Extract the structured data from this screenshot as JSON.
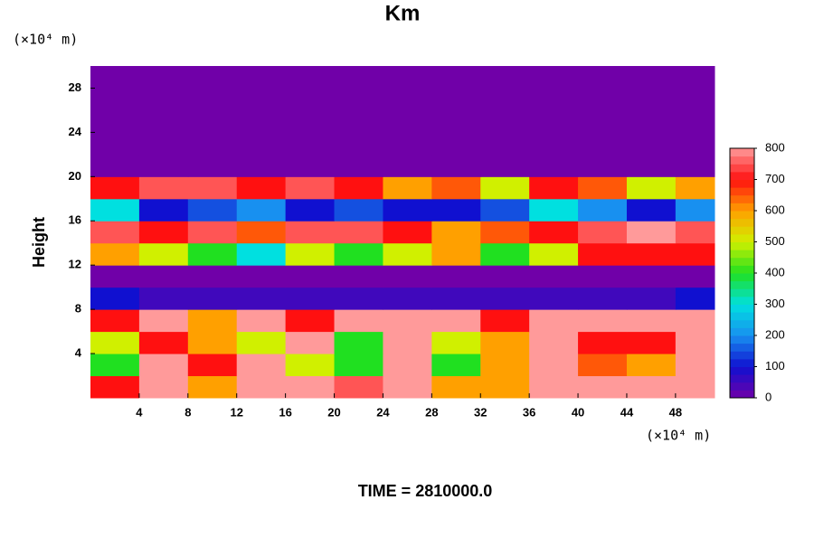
{
  "chart_data": {
    "type": "heatmap",
    "title": "Km",
    "ylabel": "Height",
    "x_unit": "(×10⁴ m)",
    "y_unit": "(×10⁴ m)",
    "footer": "TIME = 2810000.0",
    "xlim": [
      0,
      51.2
    ],
    "ylim": [
      0,
      30
    ],
    "xticks": [
      4,
      8,
      12,
      16,
      20,
      24,
      28,
      32,
      36,
      40,
      44,
      48
    ],
    "yticks": [
      4,
      8,
      12,
      16,
      20,
      24,
      28
    ],
    "x_edges": [
      0,
      4,
      8,
      12,
      16,
      20,
      24,
      28,
      32,
      36,
      40,
      44,
      48,
      51.2
    ],
    "y_edges": [
      0,
      2,
      4,
      6,
      8,
      10,
      12,
      14,
      16,
      18,
      20,
      22,
      24,
      26,
      28,
      30
    ],
    "z": [
      [
        700,
        800,
        600,
        800,
        800,
        750,
        800,
        600,
        600,
        800,
        800,
        800,
        800
      ],
      [
        400,
        800,
        700,
        800,
        500,
        400,
        800,
        400,
        600,
        800,
        650,
        600,
        800
      ],
      [
        500,
        700,
        600,
        500,
        800,
        400,
        800,
        500,
        600,
        800,
        700,
        700,
        800
      ],
      [
        700,
        800,
        600,
        800,
        700,
        800,
        800,
        800,
        700,
        800,
        800,
        800,
        800
      ],
      [
        100,
        50,
        50,
        50,
        50,
        50,
        50,
        50,
        50,
        50,
        50,
        50,
        100
      ],
      [
        0,
        0,
        0,
        0,
        0,
        0,
        0,
        0,
        0,
        0,
        0,
        0,
        0
      ],
      [
        600,
        500,
        400,
        300,
        500,
        400,
        500,
        600,
        400,
        500,
        700,
        700,
        700
      ],
      [
        750,
        700,
        750,
        650,
        750,
        750,
        700,
        600,
        650,
        700,
        750,
        800,
        750
      ],
      [
        300,
        100,
        150,
        200,
        100,
        150,
        100,
        100,
        150,
        300,
        200,
        100,
        200
      ],
      [
        700,
        750,
        750,
        700,
        750,
        700,
        600,
        650,
        500,
        700,
        650,
        500,
        600
      ],
      [
        0,
        0,
        0,
        0,
        0,
        0,
        0,
        0,
        0,
        0,
        0,
        0,
        0
      ],
      [
        0,
        0,
        0,
        0,
        0,
        0,
        0,
        0,
        0,
        0,
        0,
        0,
        0
      ],
      [
        0,
        0,
        0,
        0,
        0,
        0,
        0,
        0,
        0,
        0,
        0,
        0,
        0
      ],
      [
        0,
        0,
        0,
        0,
        0,
        0,
        0,
        0,
        0,
        0,
        0,
        0,
        0
      ],
      [
        0,
        0,
        0,
        0,
        0,
        0,
        0,
        0,
        0,
        0,
        0,
        0,
        0
      ]
    ],
    "colorbar_ticks": [
      0,
      100,
      200,
      300,
      400,
      500,
      600,
      700,
      800
    ],
    "colorbar_colors": [
      "#7000a8",
      "#1010d0",
      "#1890f0",
      "#00e0e0",
      "#20e020",
      "#d0f000",
      "#ffa000",
      "#ff1010",
      "#ff9a9a"
    ]
  }
}
